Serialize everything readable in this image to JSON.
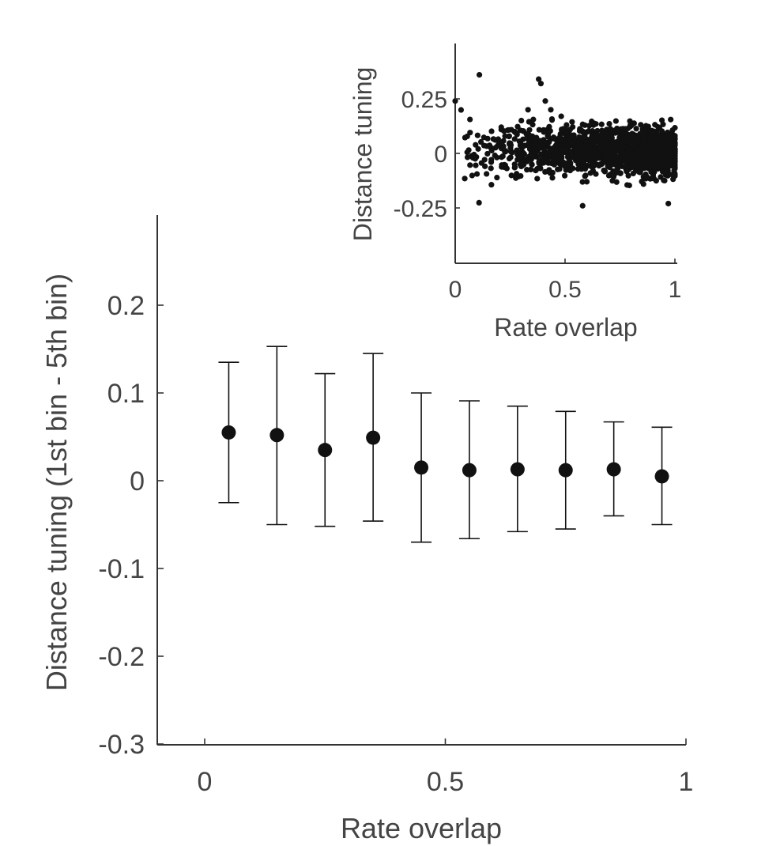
{
  "chart_data": [
    {
      "type": "scatter",
      "title": "",
      "xlabel": "Rate overlap",
      "ylabel": "Distance tuning (1st bin - 5th bin)",
      "xlim": [
        -0.1,
        1.0
      ],
      "ylim": [
        -0.3,
        0.3
      ],
      "xticks": [
        0,
        0.5,
        1
      ],
      "xtick_labels": [
        "0",
        "0.5",
        "1"
      ],
      "yticks": [
        -0.3,
        -0.2,
        -0.1,
        0,
        0.1,
        0.2
      ],
      "ytick_labels": [
        "-0.3",
        "-0.2",
        "-0.1",
        "0",
        "0.1",
        "0.2"
      ],
      "grid": false,
      "series": [
        {
          "marker": "filled-circle-with-error-bars",
          "x": [
            0.05,
            0.15,
            0.25,
            0.35,
            0.45,
            0.55,
            0.65,
            0.75,
            0.85,
            0.95
          ],
          "y": [
            0.055,
            0.052,
            0.035,
            0.049,
            0.015,
            0.012,
            0.013,
            0.012,
            0.013,
            0.005
          ],
          "err_upper": [
            0.135,
            0.153,
            0.122,
            0.145,
            0.1,
            0.091,
            0.085,
            0.079,
            0.067,
            0.061
          ],
          "err_lower": [
            -0.025,
            -0.05,
            -0.052,
            -0.046,
            -0.07,
            -0.066,
            -0.058,
            -0.055,
            -0.04,
            -0.05
          ]
        }
      ],
      "colors": {
        "marker": "#111111",
        "axis": "#333333",
        "text": "#444444"
      }
    },
    {
      "type": "scatter",
      "title": "",
      "xlabel": "Rate overlap",
      "ylabel": "Distance tuning",
      "xlim": [
        0,
        1
      ],
      "ylim": [
        -0.5,
        0.5
      ],
      "xticks": [
        0,
        0.5,
        1
      ],
      "xtick_labels": [
        "0",
        "0.5",
        "1"
      ],
      "yticks": [
        -0.25,
        0,
        0.25
      ],
      "ytick_labels": [
        "-0.25",
        "0",
        "0.25"
      ],
      "grid": false,
      "approx_point_count": 1400,
      "x_range": [
        0,
        1
      ],
      "y_range": [
        -0.24,
        0.37
      ],
      "notable_points": [
        {
          "x": 0.0,
          "y": 0.24
        },
        {
          "x": 0.11,
          "y": 0.36
        },
        {
          "x": 0.38,
          "y": 0.34
        },
        {
          "x": 0.39,
          "y": 0.32
        },
        {
          "x": 0.41,
          "y": 0.24
        },
        {
          "x": 0.58,
          "y": -0.24
        },
        {
          "x": 0.97,
          "y": -0.23
        }
      ]
    }
  ]
}
